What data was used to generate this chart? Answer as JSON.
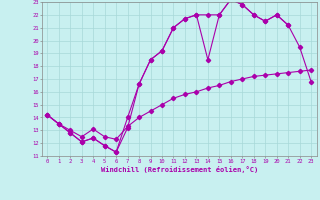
{
  "title": "",
  "xlabel": "Windchill (Refroidissement éolien,°C)",
  "ylabel": "",
  "bg_color": "#c8f0f0",
  "grid_color": "#a8d8d8",
  "line_color": "#aa00aa",
  "xlim": [
    -0.5,
    23.5
  ],
  "ylim": [
    11,
    23
  ],
  "xticks": [
    0,
    1,
    2,
    3,
    4,
    5,
    6,
    7,
    8,
    9,
    10,
    11,
    12,
    13,
    14,
    15,
    16,
    17,
    18,
    19,
    20,
    21,
    22,
    23
  ],
  "yticks": [
    11,
    12,
    13,
    14,
    15,
    16,
    17,
    18,
    19,
    20,
    21,
    22,
    23
  ],
  "line1_x": [
    0,
    1,
    2,
    3,
    4,
    5,
    6,
    7,
    8,
    9,
    10,
    11,
    12,
    13,
    14,
    15,
    16,
    17,
    18,
    19,
    20,
    21
  ],
  "line1_y": [
    14.2,
    13.5,
    12.8,
    12.1,
    12.4,
    11.8,
    11.3,
    14.0,
    16.6,
    18.5,
    19.2,
    21.0,
    21.7,
    22.0,
    22.0,
    22.0,
    23.2,
    22.8,
    22.0,
    21.5,
    22.0,
    21.2
  ],
  "line2_x": [
    0,
    1,
    2,
    3,
    4,
    5,
    6,
    7,
    8,
    9,
    10,
    11,
    12,
    13,
    14,
    15,
    16,
    17,
    18,
    19,
    20,
    21,
    22,
    23
  ],
  "line2_y": [
    14.2,
    13.5,
    12.8,
    12.1,
    12.4,
    11.8,
    11.3,
    13.2,
    16.6,
    18.5,
    19.2,
    21.0,
    21.7,
    22.0,
    18.5,
    22.0,
    23.2,
    22.8,
    22.0,
    21.5,
    22.0,
    21.2,
    19.5,
    16.8
  ],
  "line3_x": [
    0,
    1,
    2,
    3,
    4,
    5,
    6,
    7,
    8,
    9,
    10,
    11,
    12,
    13,
    14,
    15,
    16,
    17,
    18,
    19,
    20,
    21,
    22,
    23
  ],
  "line3_y": [
    14.2,
    13.5,
    13.0,
    12.5,
    13.1,
    12.5,
    12.3,
    13.3,
    14.0,
    14.5,
    15.0,
    15.5,
    15.8,
    16.0,
    16.3,
    16.5,
    16.8,
    17.0,
    17.2,
    17.3,
    17.4,
    17.5,
    17.6,
    17.7
  ]
}
